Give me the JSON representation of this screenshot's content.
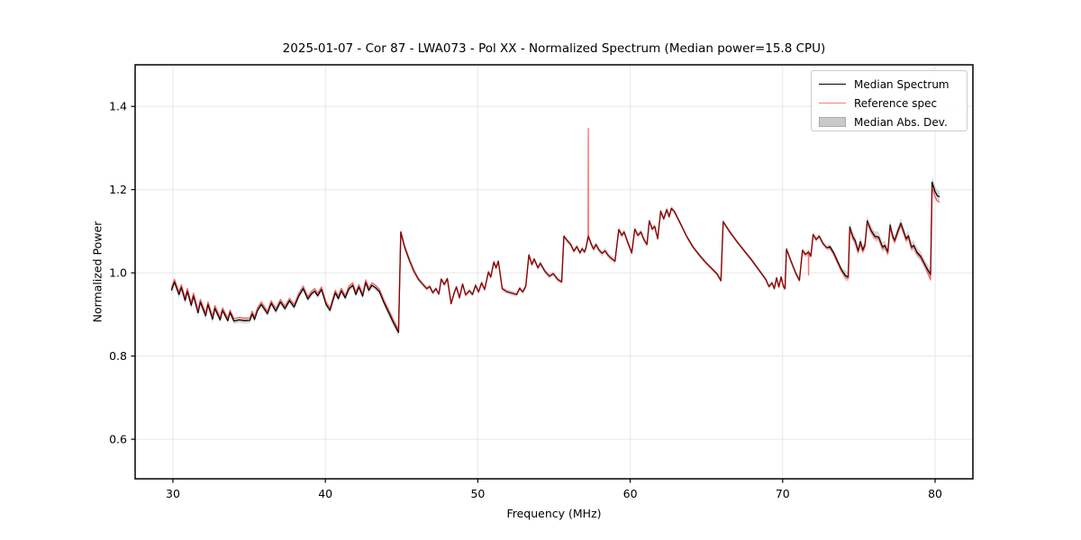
{
  "chart_data": {
    "type": "line",
    "title": "2025-01-07 - Cor 87 - LWA073 - Pol XX - Normalized Spectrum (Median power=15.8 CPU)",
    "xlabel": "Frequency (MHz)",
    "ylabel": "Normalized Power",
    "xlim": [
      27.52,
      82.48
    ],
    "ylim": [
      0.505,
      1.5
    ],
    "x_ticks": [
      30,
      40,
      50,
      60,
      70,
      80
    ],
    "y_ticks": [
      0.6,
      0.8,
      1.0,
      1.2,
      1.4
    ],
    "grid": true,
    "colors": {
      "median_line": "#000000",
      "reference_line": "rgba(255,0,0,0.55)",
      "reference_legend": "#f47c7c",
      "mad_band": "#b8b8b8",
      "gridline": "#e7e7e7",
      "spine": "#000000"
    },
    "legend": {
      "position": "upper right",
      "items": [
        {
          "label": "Median Spectrum",
          "sample": "black-line"
        },
        {
          "label": "Reference spec",
          "sample": "red-line"
        },
        {
          "label": "Median Abs. Dev.",
          "sample": "gray-patch"
        }
      ]
    },
    "series": [
      {
        "name": "Median Spectrum",
        "points": [
          [
            29.9,
            0.958
          ],
          [
            30.1,
            0.978
          ],
          [
            30.4,
            0.948
          ],
          [
            30.55,
            0.965
          ],
          [
            30.8,
            0.934
          ],
          [
            30.95,
            0.956
          ],
          [
            31.2,
            0.922
          ],
          [
            31.35,
            0.945
          ],
          [
            31.65,
            0.904
          ],
          [
            31.8,
            0.93
          ],
          [
            32.15,
            0.897
          ],
          [
            32.3,
            0.924
          ],
          [
            32.6,
            0.889
          ],
          [
            32.75,
            0.915
          ],
          [
            33.1,
            0.887
          ],
          [
            33.25,
            0.91
          ],
          [
            33.6,
            0.885
          ],
          [
            33.75,
            0.905
          ],
          [
            34.0,
            0.884
          ],
          [
            34.35,
            0.887
          ],
          [
            34.7,
            0.885
          ],
          [
            35.05,
            0.886
          ],
          [
            35.2,
            0.902
          ],
          [
            35.35,
            0.888
          ],
          [
            35.55,
            0.91
          ],
          [
            35.8,
            0.924
          ],
          [
            36.2,
            0.902
          ],
          [
            36.45,
            0.927
          ],
          [
            36.75,
            0.908
          ],
          [
            37.05,
            0.93
          ],
          [
            37.35,
            0.914
          ],
          [
            37.65,
            0.933
          ],
          [
            37.95,
            0.918
          ],
          [
            38.25,
            0.944
          ],
          [
            38.55,
            0.962
          ],
          [
            38.85,
            0.937
          ],
          [
            39.1,
            0.95
          ],
          [
            39.3,
            0.956
          ],
          [
            39.5,
            0.945
          ],
          [
            39.75,
            0.96
          ],
          [
            40.05,
            0.924
          ],
          [
            40.3,
            0.91
          ],
          [
            40.65,
            0.952
          ],
          [
            40.85,
            0.938
          ],
          [
            41.05,
            0.957
          ],
          [
            41.3,
            0.94
          ],
          [
            41.55,
            0.962
          ],
          [
            41.8,
            0.97
          ],
          [
            42.0,
            0.948
          ],
          [
            42.2,
            0.966
          ],
          [
            42.45,
            0.944
          ],
          [
            42.65,
            0.977
          ],
          [
            42.85,
            0.958
          ],
          [
            43.05,
            0.97
          ],
          [
            43.3,
            0.964
          ],
          [
            43.55,
            0.955
          ],
          [
            43.85,
            0.928
          ],
          [
            44.15,
            0.905
          ],
          [
            44.5,
            0.878
          ],
          [
            44.8,
            0.857
          ],
          [
            44.95,
            1.098
          ],
          [
            45.2,
            1.062
          ],
          [
            45.5,
            1.032
          ],
          [
            45.8,
            1.005
          ],
          [
            46.1,
            0.985
          ],
          [
            46.4,
            0.972
          ],
          [
            46.65,
            0.962
          ],
          [
            46.85,
            0.967
          ],
          [
            47.05,
            0.952
          ],
          [
            47.25,
            0.962
          ],
          [
            47.45,
            0.949
          ],
          [
            47.6,
            0.985
          ],
          [
            47.8,
            0.972
          ],
          [
            48.0,
            0.986
          ],
          [
            48.25,
            0.926
          ],
          [
            48.45,
            0.952
          ],
          [
            48.6,
            0.966
          ],
          [
            48.8,
            0.94
          ],
          [
            49.0,
            0.973
          ],
          [
            49.2,
            0.947
          ],
          [
            49.45,
            0.957
          ],
          [
            49.65,
            0.948
          ],
          [
            49.85,
            0.97
          ],
          [
            50.05,
            0.954
          ],
          [
            50.25,
            0.976
          ],
          [
            50.45,
            0.96
          ],
          [
            50.7,
            1.002
          ],
          [
            50.85,
            0.99
          ],
          [
            51.05,
            1.026
          ],
          [
            51.2,
            1.012
          ],
          [
            51.35,
            1.028
          ],
          [
            51.6,
            0.962
          ],
          [
            51.9,
            0.955
          ],
          [
            52.55,
            0.948
          ],
          [
            52.75,
            0.963
          ],
          [
            52.95,
            0.954
          ],
          [
            53.15,
            0.968
          ],
          [
            53.35,
            1.043
          ],
          [
            53.55,
            1.02
          ],
          [
            53.7,
            1.033
          ],
          [
            53.95,
            1.012
          ],
          [
            54.1,
            1.023
          ],
          [
            54.4,
            1.004
          ],
          [
            54.7,
            0.992
          ],
          [
            54.95,
            0.998
          ],
          [
            55.25,
            0.984
          ],
          [
            55.5,
            0.978
          ],
          [
            55.65,
            1.088
          ],
          [
            55.9,
            1.076
          ],
          [
            56.1,
            1.068
          ],
          [
            56.3,
            1.052
          ],
          [
            56.5,
            1.063
          ],
          [
            56.7,
            1.048
          ],
          [
            56.85,
            1.058
          ],
          [
            57.0,
            1.05
          ],
          [
            57.1,
            1.06
          ],
          [
            57.25,
            1.088
          ],
          [
            57.45,
            1.068
          ],
          [
            57.6,
            1.057
          ],
          [
            57.75,
            1.068
          ],
          [
            57.95,
            1.055
          ],
          [
            58.15,
            1.047
          ],
          [
            58.35,
            1.053
          ],
          [
            58.55,
            1.042
          ],
          [
            58.75,
            1.035
          ],
          [
            59.0,
            1.028
          ],
          [
            59.25,
            1.104
          ],
          [
            59.45,
            1.09
          ],
          [
            59.6,
            1.098
          ],
          [
            59.85,
            1.072
          ],
          [
            60.1,
            1.048
          ],
          [
            60.3,
            1.105
          ],
          [
            60.5,
            1.09
          ],
          [
            60.7,
            1.098
          ],
          [
            60.9,
            1.08
          ],
          [
            61.1,
            1.068
          ],
          [
            61.25,
            1.125
          ],
          [
            61.45,
            1.105
          ],
          [
            61.6,
            1.112
          ],
          [
            61.8,
            1.082
          ],
          [
            62.0,
            1.148
          ],
          [
            62.2,
            1.13
          ],
          [
            62.4,
            1.152
          ],
          [
            62.55,
            1.135
          ],
          [
            62.7,
            1.155
          ],
          [
            62.9,
            1.147
          ],
          [
            63.3,
            1.118
          ],
          [
            63.7,
            1.088
          ],
          [
            64.1,
            1.063
          ],
          [
            64.5,
            1.044
          ],
          [
            64.9,
            1.027
          ],
          [
            65.3,
            1.012
          ],
          [
            65.7,
            0.997
          ],
          [
            65.95,
            0.981
          ],
          [
            66.1,
            1.123
          ],
          [
            66.5,
            1.1
          ],
          [
            67.0,
            1.075
          ],
          [
            67.5,
            1.052
          ],
          [
            68.0,
            1.029
          ],
          [
            68.5,
            1.004
          ],
          [
            68.9,
            0.984
          ],
          [
            69.1,
            0.967
          ],
          [
            69.3,
            0.976
          ],
          [
            69.45,
            0.962
          ],
          [
            69.6,
            0.988
          ],
          [
            69.75,
            0.966
          ],
          [
            69.9,
            0.99
          ],
          [
            70.05,
            0.967
          ],
          [
            70.15,
            0.962
          ],
          [
            70.25,
            1.057
          ],
          [
            70.55,
            1.028
          ],
          [
            70.85,
            1.0
          ],
          [
            71.1,
            0.982
          ],
          [
            71.3,
            1.054
          ],
          [
            71.5,
            1.044
          ],
          [
            71.7,
            1.05
          ],
          [
            71.85,
            1.04
          ],
          [
            72.0,
            1.092
          ],
          [
            72.2,
            1.08
          ],
          [
            72.4,
            1.088
          ],
          [
            72.65,
            1.07
          ],
          [
            72.9,
            1.06
          ],
          [
            73.1,
            1.063
          ],
          [
            73.35,
            1.048
          ],
          [
            73.6,
            1.028
          ],
          [
            73.85,
            1.008
          ],
          [
            74.1,
            0.994
          ],
          [
            74.3,
            0.99
          ],
          [
            74.4,
            1.11
          ],
          [
            74.6,
            1.087
          ],
          [
            74.75,
            1.078
          ],
          [
            74.95,
            1.053
          ],
          [
            75.1,
            1.075
          ],
          [
            75.25,
            1.055
          ],
          [
            75.4,
            1.067
          ],
          [
            75.55,
            1.125
          ],
          [
            75.8,
            1.102
          ],
          [
            76.05,
            1.088
          ],
          [
            76.3,
            1.086
          ],
          [
            76.55,
            1.062
          ],
          [
            76.7,
            1.066
          ],
          [
            76.9,
            1.05
          ],
          [
            77.05,
            1.115
          ],
          [
            77.2,
            1.09
          ],
          [
            77.35,
            1.078
          ],
          [
            77.55,
            1.1
          ],
          [
            77.75,
            1.119
          ],
          [
            78.1,
            1.082
          ],
          [
            78.25,
            1.089
          ],
          [
            78.45,
            1.062
          ],
          [
            78.6,
            1.066
          ],
          [
            78.8,
            1.05
          ],
          [
            79.05,
            1.04
          ],
          [
            79.4,
            1.015
          ],
          [
            79.7,
            0.996
          ],
          [
            79.8,
            1.218
          ],
          [
            80.0,
            1.195
          ],
          [
            80.15,
            1.185
          ],
          [
            80.3,
            1.183
          ]
        ]
      },
      {
        "name": "Reference spec",
        "derived_from_median": true,
        "delta_regions": [
          [
            27.5,
            44.9,
            0.006
          ],
          [
            44.9,
            73.0,
            0.0
          ],
          [
            73.0,
            79.6,
            -0.004
          ],
          [
            79.6,
            82.5,
            -0.013
          ]
        ],
        "spikes": [
          {
            "freq": 57.25,
            "value": 1.347
          },
          {
            "freq": 71.7,
            "value": 0.995
          }
        ]
      },
      {
        "name": "Median Abs. Dev.",
        "band_around_median": true,
        "dev_regions": [
          [
            27.5,
            33.0,
            0.01
          ],
          [
            33.0,
            44.0,
            0.007
          ],
          [
            44.0,
            46.0,
            0.01
          ],
          [
            46.0,
            57.0,
            0.006
          ],
          [
            57.0,
            63.0,
            0.007
          ],
          [
            63.0,
            70.0,
            0.005
          ],
          [
            70.0,
            74.0,
            0.007
          ],
          [
            74.0,
            79.6,
            0.012
          ],
          [
            79.6,
            82.5,
            0.014
          ]
        ]
      }
    ]
  }
}
